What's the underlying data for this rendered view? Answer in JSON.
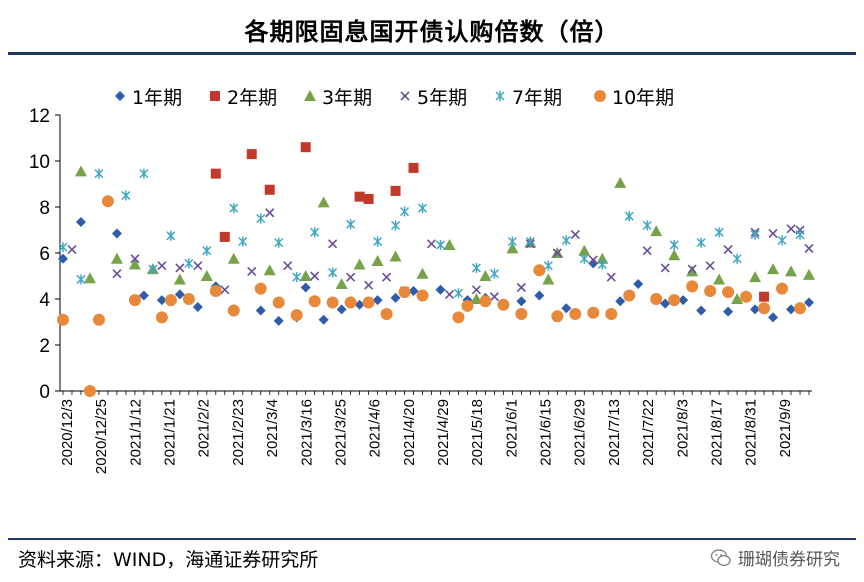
{
  "title": "各期限固息国开债认购倍数（倍）",
  "source": "资料来源：WIND，海通证券研究所",
  "watermark": "珊瑚债券研究",
  "chart_data": {
    "type": "scatter",
    "title": "各期限固息国开债认购倍数（倍）",
    "ylim": [
      0,
      12
    ],
    "yticks": [
      "0",
      "2",
      "4",
      "6",
      "8",
      "10",
      "12"
    ],
    "xticks": [
      "2020/12/3",
      "2020/12/25",
      "2021/1/12",
      "2021/1/21",
      "2021/2/2",
      "2021/2/23",
      "2021/3/4",
      "2021/3/16",
      "2021/3/25",
      "2021/4/6",
      "2021/4/20",
      "2021/4/29",
      "2021/5/18",
      "2021/6/1",
      "2021/6/15",
      "2021/6/29",
      "2021/7/13",
      "2021/7/22",
      "2021/8/3",
      "2021/8/17",
      "2021/8/31",
      "2021/9/9"
    ],
    "x_count": 84,
    "series": [
      {
        "name": "1年期",
        "marker": "diamond",
        "color": "#2e5caa",
        "x": [
          0,
          2,
          6,
          9,
          11,
          13,
          15,
          17,
          22,
          24,
          26,
          27,
          29,
          31,
          33,
          35,
          37,
          39,
          42,
          45,
          47,
          51,
          53,
          56,
          59,
          62,
          64,
          67,
          69,
          71,
          74,
          77,
          79,
          81,
          83
        ],
        "y": [
          5.75,
          7.35,
          6.85,
          4.15,
          3.95,
          4.2,
          3.65,
          4.55,
          3.5,
          3.05,
          3.2,
          4.5,
          3.1,
          3.55,
          3.75,
          3.95,
          4.05,
          4.35,
          4.4,
          3.95,
          4.05,
          3.9,
          4.15,
          3.6,
          5.55,
          3.9,
          4.65,
          3.8,
          3.95,
          3.5,
          3.45,
          3.55,
          3.2,
          3.55,
          3.85
        ]
      },
      {
        "name": "2年期",
        "marker": "square",
        "color": "#c0392b",
        "x": [
          17,
          18,
          21,
          23,
          27,
          33,
          34,
          37,
          39,
          78
        ],
        "y": [
          9.45,
          6.7,
          10.3,
          8.75,
          10.6,
          8.45,
          8.35,
          8.7,
          9.7,
          4.1
        ]
      },
      {
        "name": "3年期",
        "marker": "triangle",
        "color": "#76a34a",
        "x": [
          2,
          3,
          6,
          8,
          10,
          13,
          16,
          19,
          23,
          27,
          29,
          31,
          33,
          35,
          37,
          40,
          43,
          46,
          47,
          50,
          52,
          54,
          55,
          58,
          60,
          62,
          66,
          68,
          70,
          73,
          75,
          77,
          79,
          81,
          83
        ],
        "y": [
          9.55,
          4.9,
          5.75,
          5.5,
          5.3,
          4.85,
          5.0,
          5.75,
          5.25,
          5.0,
          8.2,
          4.65,
          5.5,
          5.65,
          5.85,
          5.1,
          6.35,
          4.0,
          5.0,
          6.2,
          6.45,
          4.85,
          6.0,
          6.1,
          5.75,
          9.05,
          6.95,
          5.9,
          5.2,
          4.85,
          4.0,
          4.95,
          5.3,
          5.2,
          5.05
        ]
      },
      {
        "name": "5年期",
        "marker": "x",
        "color": "#6b4e9b",
        "x": [
          1,
          6,
          8,
          11,
          13,
          15,
          18,
          21,
          23,
          25,
          28,
          30,
          32,
          34,
          36,
          38,
          41,
          43,
          46,
          48,
          51,
          52,
          55,
          57,
          59,
          61,
          65,
          67,
          70,
          72,
          74,
          77,
          79,
          81,
          82,
          83
        ],
        "y": [
          6.15,
          5.1,
          5.75,
          5.45,
          5.35,
          5.45,
          4.4,
          5.2,
          7.75,
          5.45,
          5.0,
          6.4,
          4.95,
          4.6,
          4.95,
          4.35,
          6.4,
          4.2,
          4.4,
          4.1,
          4.5,
          6.4,
          6.0,
          6.8,
          5.7,
          4.95,
          6.1,
          5.35,
          5.3,
          5.45,
          6.15,
          6.9,
          6.85,
          7.05,
          7.0,
          6.2
        ]
      },
      {
        "name": "7年期",
        "marker": "star",
        "color": "#3fa7c2",
        "x": [
          0,
          2,
          4,
          7,
          9,
          10,
          12,
          14,
          16,
          19,
          20,
          22,
          24,
          26,
          28,
          30,
          32,
          35,
          37,
          38,
          40,
          42,
          44,
          46,
          48,
          50,
          52,
          54,
          56,
          58,
          60,
          63,
          65,
          68,
          71,
          73,
          75,
          77,
          80,
          82
        ],
        "y": [
          6.25,
          4.85,
          9.45,
          8.5,
          9.45,
          5.3,
          6.75,
          5.55,
          6.1,
          7.95,
          6.5,
          7.5,
          6.45,
          4.95,
          6.9,
          5.15,
          7.25,
          6.5,
          7.2,
          7.8,
          7.95,
          6.35,
          4.25,
          5.35,
          5.1,
          6.5,
          6.5,
          5.45,
          6.55,
          5.75,
          5.5,
          7.6,
          7.2,
          6.35,
          6.45,
          6.9,
          5.75,
          6.8,
          6.55,
          6.8
        ]
      },
      {
        "name": "10年期",
        "marker": "circle",
        "color": "#e8883a",
        "x": [
          0,
          4,
          3,
          5,
          8,
          11,
          12,
          14,
          17,
          19,
          22,
          24,
          26,
          28,
          30,
          32,
          34,
          36,
          38,
          40,
          44,
          45,
          47,
          49,
          51,
          53,
          55,
          57,
          59,
          61,
          63,
          66,
          68,
          70,
          72,
          74,
          76,
          78,
          80,
          82
        ],
        "y": [
          3.1,
          3.1,
          0.0,
          8.25,
          3.95,
          3.2,
          3.95,
          4.0,
          4.35,
          3.5,
          4.45,
          3.85,
          3.3,
          3.9,
          3.85,
          3.85,
          3.85,
          3.35,
          4.3,
          4.15,
          3.2,
          3.7,
          3.9,
          3.75,
          3.35,
          5.25,
          3.25,
          3.35,
          3.4,
          3.35,
          4.15,
          4.0,
          3.95,
          4.55,
          4.35,
          4.3,
          4.1,
          3.6,
          4.45,
          3.6
        ]
      }
    ]
  }
}
